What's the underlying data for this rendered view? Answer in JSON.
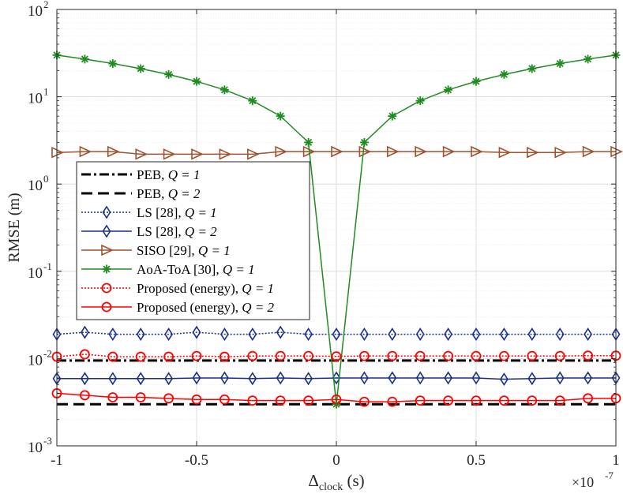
{
  "chart_data": {
    "type": "line",
    "title": "",
    "xlabel_main": "Δ",
    "xlabel_sub": "clock",
    "xlabel_unit": " (s)",
    "ylabel": "RMSE (m)",
    "x_multiplier": "×10",
    "x_multiplier_exp": "-7",
    "xlim": [
      -1,
      1
    ],
    "ylim": [
      0.001,
      100
    ],
    "yscale": "log",
    "grid": true,
    "legend_position": "middle-left",
    "x_ticks": [
      -1,
      -0.5,
      0,
      0.5,
      1
    ],
    "x_tick_labels": [
      "-1",
      "-0.5",
      "0",
      "0.5",
      "1"
    ],
    "y_ticks": [
      0.001,
      0.01,
      0.1,
      1,
      10,
      100
    ],
    "y_tick_labels": [
      {
        "base": "10",
        "exp": "-3"
      },
      {
        "base": "10",
        "exp": "-2"
      },
      {
        "base": "10",
        "exp": "-1"
      },
      {
        "base": "10",
        "exp": "0"
      },
      {
        "base": "10",
        "exp": "1"
      },
      {
        "base": "10",
        "exp": "2"
      }
    ],
    "x": [
      -1,
      -0.9,
      -0.8,
      -0.7,
      -0.6,
      -0.5,
      -0.4,
      -0.3,
      -0.2,
      -0.1,
      0,
      0.1,
      0.2,
      0.3,
      0.4,
      0.5,
      0.6,
      0.7,
      0.8,
      0.9,
      1
    ],
    "series": [
      {
        "name": "PEB",
        "q": "Q = 1",
        "color": "#000000",
        "dash": "12,4,3,4",
        "width": 3,
        "marker": "none",
        "values": [
          0.0095,
          0.0095,
          0.0095,
          0.0095,
          0.0095,
          0.0095,
          0.0095,
          0.0095,
          0.0095,
          0.0095,
          0.0095,
          0.0095,
          0.0095,
          0.0095,
          0.0095,
          0.0095,
          0.0095,
          0.0095,
          0.0095,
          0.0095,
          0.0095
        ]
      },
      {
        "name": "PEB",
        "q": "Q = 2",
        "color": "#000000",
        "dash": "14,7",
        "width": 3,
        "marker": "none",
        "values": [
          0.003,
          0.003,
          0.003,
          0.003,
          0.003,
          0.003,
          0.003,
          0.003,
          0.003,
          0.003,
          0.003,
          0.003,
          0.003,
          0.003,
          0.003,
          0.003,
          0.003,
          0.003,
          0.003,
          0.003,
          0.003
        ]
      },
      {
        "name": "LS [28]",
        "q": "Q = 1",
        "color": "#1a2f8c",
        "dash": "2,2",
        "width": 1.5,
        "marker": "diamond",
        "values": [
          0.019,
          0.02,
          0.019,
          0.019,
          0.019,
          0.02,
          0.019,
          0.019,
          0.02,
          0.019,
          0.019,
          0.019,
          0.019,
          0.019,
          0.019,
          0.019,
          0.019,
          0.019,
          0.019,
          0.019,
          0.019
        ]
      },
      {
        "name": "LS [28]",
        "q": "Q = 2",
        "color": "#1a2f8c",
        "dash": "",
        "width": 1.5,
        "marker": "diamond",
        "values": [
          0.0059,
          0.0059,
          0.0059,
          0.0059,
          0.0059,
          0.006,
          0.006,
          0.0059,
          0.006,
          0.0059,
          0.006,
          0.006,
          0.006,
          0.006,
          0.006,
          0.006,
          0.0058,
          0.0059,
          0.006,
          0.006,
          0.006
        ]
      },
      {
        "name": "SISO [29]",
        "q": "Q = 1",
        "color": "#a0522d",
        "dash": "",
        "width": 1.5,
        "marker": "triangle-right",
        "values": [
          2.3,
          2.35,
          2.35,
          2.2,
          2.2,
          2.2,
          2.2,
          2.2,
          2.35,
          2.35,
          2.35,
          2.35,
          2.35,
          2.35,
          2.35,
          2.35,
          2.3,
          2.3,
          2.3,
          2.35,
          2.35
        ]
      },
      {
        "name": "AoA-ToA [30]",
        "q": "Q = 1",
        "color": "#1f8c1f",
        "dash": "",
        "width": 1.5,
        "marker": "asterisk",
        "values": [
          30,
          27,
          24,
          21,
          18,
          15,
          12,
          9,
          6,
          3,
          0.003,
          3,
          6,
          9,
          12,
          15,
          18,
          21,
          24,
          27,
          30
        ]
      },
      {
        "name": "Proposed (energy)",
        "q": "Q = 1",
        "color": "#ff0000",
        "dash": "2,2",
        "width": 1.5,
        "marker": "circle",
        "values": [
          0.0105,
          0.0112,
          0.0105,
          0.0105,
          0.0105,
          0.0107,
          0.0105,
          0.0107,
          0.0107,
          0.0107,
          0.0106,
          0.0107,
          0.0107,
          0.0107,
          0.0107,
          0.0107,
          0.0107,
          0.0107,
          0.0107,
          0.0108,
          0.0108
        ]
      },
      {
        "name": "Proposed (energy)",
        "q": "Q = 2",
        "color": "#ff0000",
        "dash": "",
        "width": 1.5,
        "marker": "circle",
        "values": [
          0.004,
          0.0038,
          0.0036,
          0.0036,
          0.0035,
          0.0034,
          0.0034,
          0.0033,
          0.0033,
          0.0033,
          0.0034,
          0.0032,
          0.0032,
          0.0033,
          0.0033,
          0.0033,
          0.0033,
          0.0033,
          0.0033,
          0.0035,
          0.0035
        ]
      }
    ]
  }
}
